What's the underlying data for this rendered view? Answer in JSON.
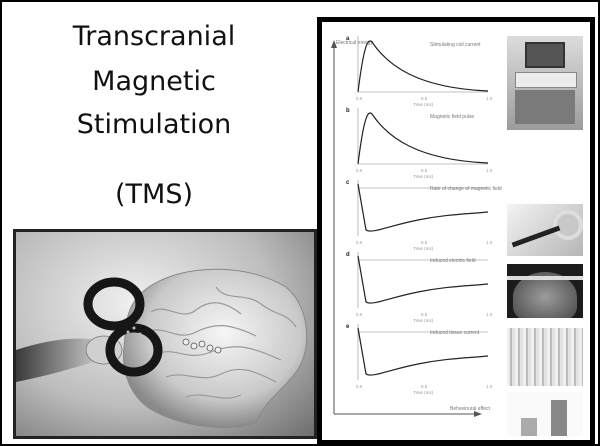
{
  "title": {
    "line1": "Transcranial",
    "line2": "Magnetic",
    "line3": "Stimulation",
    "line4": "(TMS)"
  },
  "figure": {
    "y_axis_label": "Electrical energy",
    "x_axis_end_label": "Behavioural effect",
    "time_label": "Time (ms)",
    "ticks": [
      "0.0",
      "0.5",
      "1.0"
    ],
    "panels": [
      {
        "letter": "a",
        "caption": "Stimulating coil current",
        "shape": "pulse"
      },
      {
        "letter": "b",
        "caption": "Magnetic field pulse",
        "shape": "pulse"
      },
      {
        "letter": "c",
        "caption": "Rate of change of magnetic field",
        "shape": "dip"
      },
      {
        "letter": "d",
        "caption": "Induced electric field",
        "shape": "dip"
      },
      {
        "letter": "e",
        "caption": "Induced tissue current",
        "shape": "dip"
      }
    ]
  }
}
